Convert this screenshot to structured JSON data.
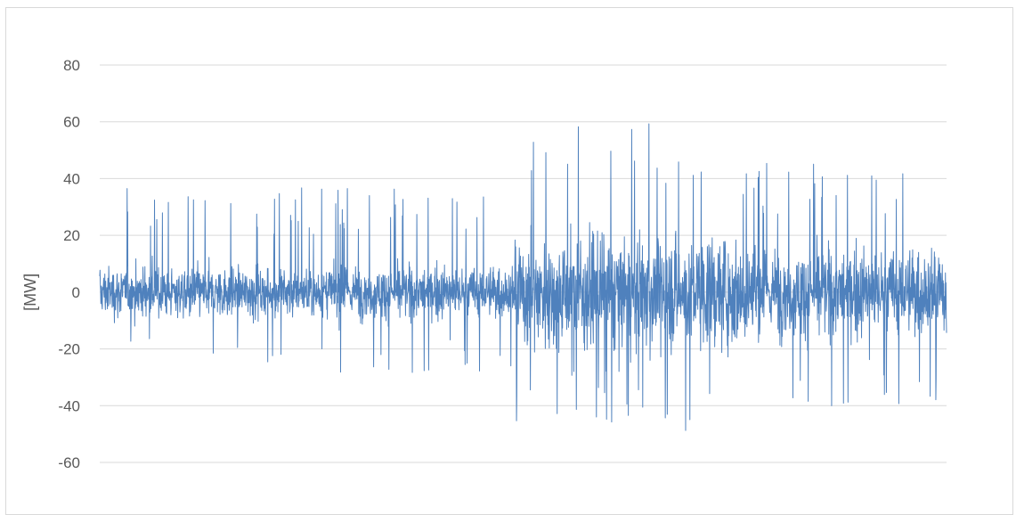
{
  "chart_data": {
    "type": "line",
    "title": "",
    "xlabel": "",
    "ylabel": "[MW]",
    "ylim": [
      -70,
      90
    ],
    "yticks": [
      80,
      60,
      40,
      20,
      0,
      -20,
      -40,
      -60
    ],
    "ytick_labels": [
      "80",
      "60",
      "40",
      "20",
      "0",
      "-20",
      "-40",
      "-60"
    ],
    "grid": true,
    "legend": "none",
    "series": [
      {
        "color": "#4f81bd",
        "description_points": 3000,
        "envelope": [
          {
            "from": 0.0,
            "to": 0.49,
            "typical_amplitude": 10,
            "max_high": 37,
            "max_low": -29
          },
          {
            "from": 0.49,
            "to": 0.78,
            "typical_amplitude": 22,
            "max_high": 62,
            "max_low": -49
          },
          {
            "from": 0.78,
            "to": 1.0,
            "typical_amplitude": 17,
            "max_high": 46,
            "max_low": -41
          }
        ]
      }
    ]
  },
  "colors": {
    "series": "#4f81bd",
    "grid": "#d9d9d9",
    "text": "#595959"
  }
}
